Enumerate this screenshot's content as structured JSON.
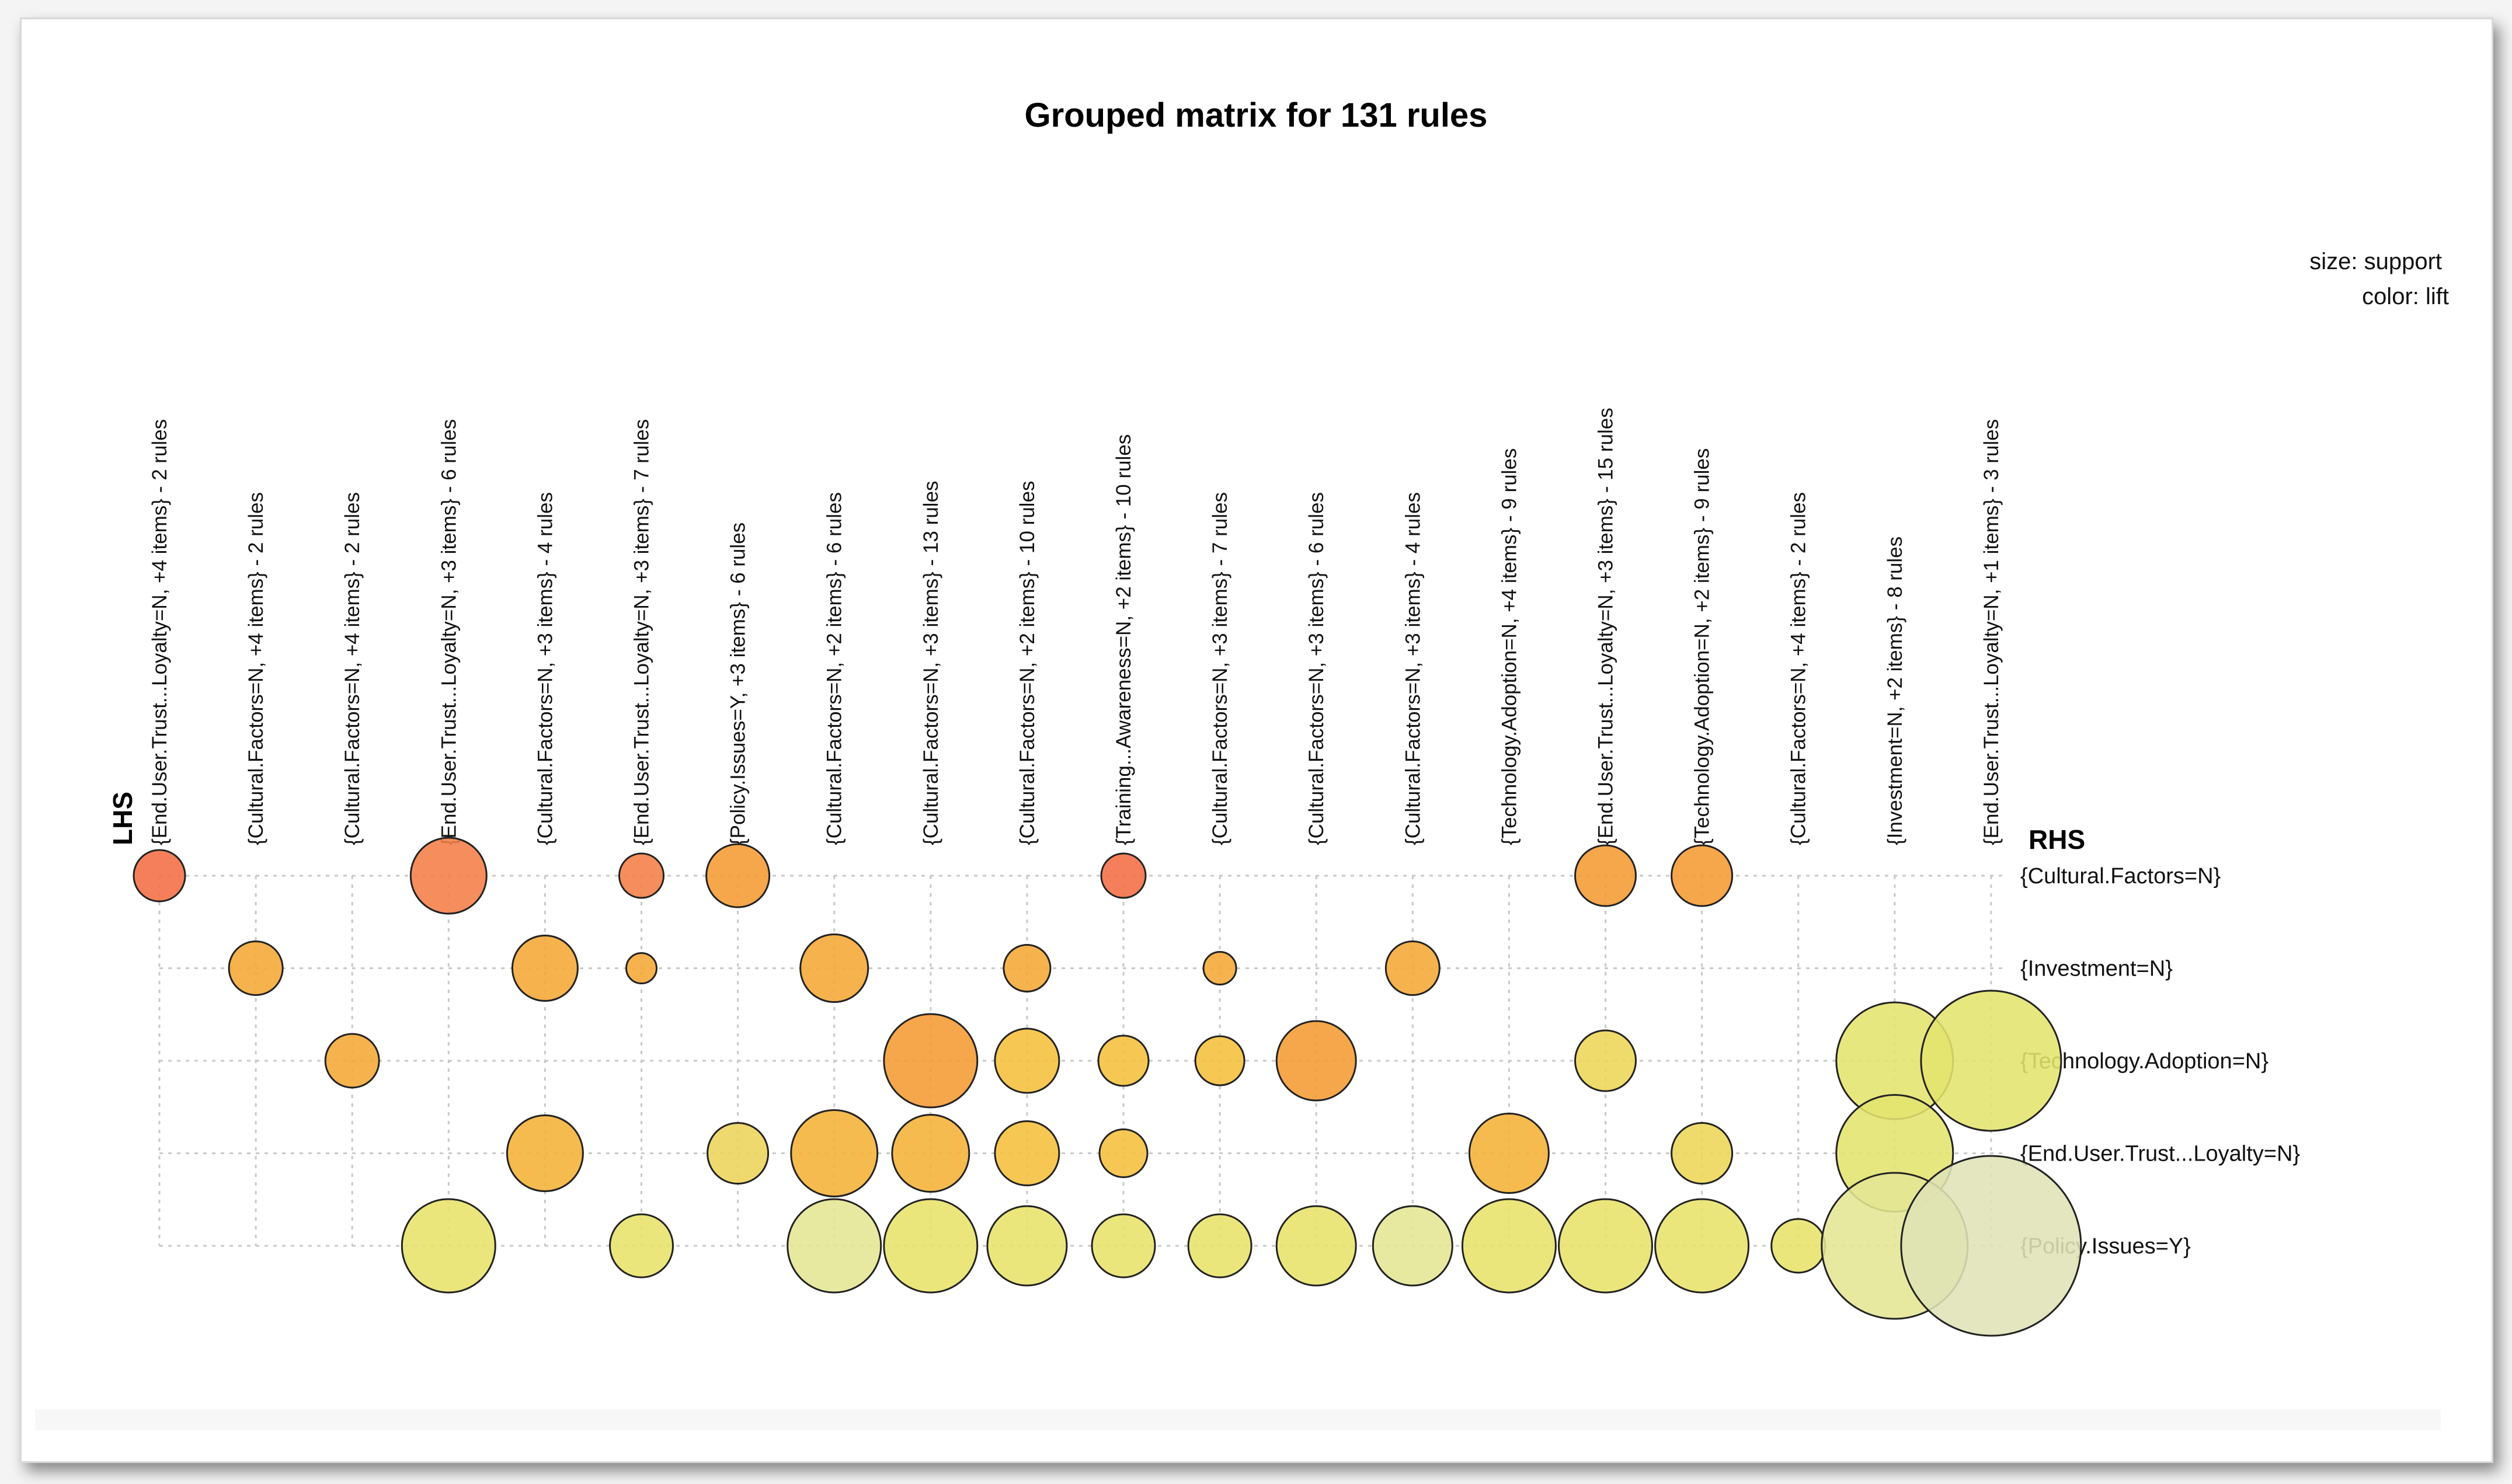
{
  "chart_data": {
    "type": "grouped-matrix",
    "title": "Grouped matrix for 131 rules",
    "legend": {
      "size": "size: support",
      "color": "color: lift",
      "placement": "top-right"
    },
    "lhs_title": "LHS",
    "rhs_title": "RHS",
    "lhs_groups": [
      "{End.User.Trust...Loyalty=N, +4 items} - 2 rules",
      "{Cultural.Factors=N, +4 items} - 2 rules",
      "{Cultural.Factors=N, +4 items} - 2 rules",
      "{End.User.Trust...Loyalty=N, +3 items} - 6 rules",
      "{Cultural.Factors=N, +3 items} - 4 rules",
      "{End.User.Trust...Loyalty=N, +3 items} - 7 rules",
      "{Policy.Issues=Y, +3 items} - 6 rules",
      "{Cultural.Factors=N, +2 items} - 6 rules",
      "{Cultural.Factors=N, +3 items} - 13 rules",
      "{Cultural.Factors=N, +2 items} - 10 rules",
      "{Training...Awareness=N, +2 items} - 10 rules",
      "{Cultural.Factors=N, +3 items} - 7 rules",
      "{Cultural.Factors=N, +3 items} - 6 rules",
      "{Cultural.Factors=N, +3 items} - 4 rules",
      "{Technology.Adoption=N, +4 items} - 9 rules",
      "{End.User.Trust...Loyalty=N, +3 items} - 15 rules",
      "{Technology.Adoption=N, +2 items} - 9 rules",
      "{Cultural.Factors=N, +4 items} - 2 rules",
      "{Investment=N, +2 items} - 8 rules",
      "{End.User.Trust...Loyalty=N, +1 items} - 3 rules"
    ],
    "rhs_items": [
      "{Cultural.Factors=N}",
      "{Investment=N}",
      "{Technology.Adoption=N}",
      "{End.User.Trust...Loyalty=N}",
      "{Policy.Issues=Y}"
    ],
    "cells": [
      {
        "col": 0,
        "row": 0,
        "support": 0.44,
        "color": "#f46d43"
      },
      {
        "col": 3,
        "row": 0,
        "support": 0.65,
        "color": "#f57d46"
      },
      {
        "col": 5,
        "row": 0,
        "support": 0.38,
        "color": "#f57d46"
      },
      {
        "col": 6,
        "row": 0,
        "support": 0.54,
        "color": "#f59a32"
      },
      {
        "col": 10,
        "row": 0,
        "support": 0.38,
        "color": "#f46d43"
      },
      {
        "col": 15,
        "row": 0,
        "support": 0.52,
        "color": "#f59a32"
      },
      {
        "col": 16,
        "row": 0,
        "support": 0.52,
        "color": "#f59a32"
      },
      {
        "col": 1,
        "row": 1,
        "support": 0.46,
        "color": "#f5a734"
      },
      {
        "col": 4,
        "row": 1,
        "support": 0.56,
        "color": "#f5a734"
      },
      {
        "col": 5,
        "row": 1,
        "support": 0.26,
        "color": "#f5a734"
      },
      {
        "col": 7,
        "row": 1,
        "support": 0.58,
        "color": "#f5a734"
      },
      {
        "col": 9,
        "row": 1,
        "support": 0.4,
        "color": "#f5a734"
      },
      {
        "col": 11,
        "row": 1,
        "support": 0.28,
        "color": "#f5a734"
      },
      {
        "col": 13,
        "row": 1,
        "support": 0.46,
        "color": "#f5a734"
      },
      {
        "col": 2,
        "row": 2,
        "support": 0.46,
        "color": "#f5a734"
      },
      {
        "col": 8,
        "row": 2,
        "support": 0.8,
        "color": "#f59a32"
      },
      {
        "col": 9,
        "row": 2,
        "support": 0.55,
        "color": "#f5bf3a"
      },
      {
        "col": 10,
        "row": 2,
        "support": 0.43,
        "color": "#f5bf3a"
      },
      {
        "col": 11,
        "row": 1.999,
        "support": 0.42,
        "color": "#f5bf3a"
      },
      {
        "col": 12,
        "row": 2,
        "support": 0.68,
        "color": "#f59a32"
      },
      {
        "col": 15,
        "row": 2,
        "support": 0.52,
        "color": "#ecd656"
      },
      {
        "col": 18,
        "row": 2,
        "support": 1.0,
        "color": "#e4e46e"
      },
      {
        "col": 19,
        "row": 2,
        "support": 1.2,
        "color": "#e4e46e"
      },
      {
        "col": 4,
        "row": 3,
        "support": 0.65,
        "color": "#f5b236"
      },
      {
        "col": 6,
        "row": 3,
        "support": 0.52,
        "color": "#ecd45a"
      },
      {
        "col": 7,
        "row": 3,
        "support": 0.74,
        "color": "#f5b236"
      },
      {
        "col": 8,
        "row": 3,
        "support": 0.66,
        "color": "#f5b236"
      },
      {
        "col": 9,
        "row": 3,
        "support": 0.55,
        "color": "#f5bf3a"
      },
      {
        "col": 10,
        "row": 3,
        "support": 0.41,
        "color": "#f5bf3a"
      },
      {
        "col": 14,
        "row": 3,
        "support": 0.68,
        "color": "#f5b236"
      },
      {
        "col": 16,
        "row": 3,
        "support": 0.52,
        "color": "#ecd656"
      },
      {
        "col": 18,
        "row": 3,
        "support": 1.0,
        "color": "#e4e46e"
      },
      {
        "col": 3,
        "row": 4,
        "support": 0.8,
        "color": "#e8e26a"
      },
      {
        "col": 5,
        "row": 4,
        "support": 0.54,
        "color": "#e8e26a"
      },
      {
        "col": 7,
        "row": 4,
        "support": 0.8,
        "color": "#e4e694"
      },
      {
        "col": 8,
        "row": 4,
        "support": 0.8,
        "color": "#e8e26a"
      },
      {
        "col": 9,
        "row": 4,
        "support": 0.68,
        "color": "#e8e26a"
      },
      {
        "col": 10,
        "row": 4,
        "support": 0.54,
        "color": "#e8e26a"
      },
      {
        "col": 11,
        "row": 4,
        "support": 0.54,
        "color": "#e8e26a"
      },
      {
        "col": 12,
        "row": 4,
        "support": 0.68,
        "color": "#e8e26a"
      },
      {
        "col": 13,
        "row": 4,
        "support": 0.68,
        "color": "#e4e694"
      },
      {
        "col": 14,
        "row": 4,
        "support": 0.8,
        "color": "#e8e26a"
      },
      {
        "col": 15,
        "row": 4,
        "support": 0.8,
        "color": "#e8e26a"
      },
      {
        "col": 16,
        "row": 4,
        "support": 0.8,
        "color": "#e8e26a"
      },
      {
        "col": 17,
        "row": 4,
        "support": 0.46,
        "color": "#e8e26a"
      },
      {
        "col": 18,
        "row": 4,
        "support": 1.25,
        "color": "#e4e694"
      },
      {
        "col": 19,
        "row": 4,
        "support": 1.54,
        "color": "#dfe3b5"
      }
    ]
  }
}
